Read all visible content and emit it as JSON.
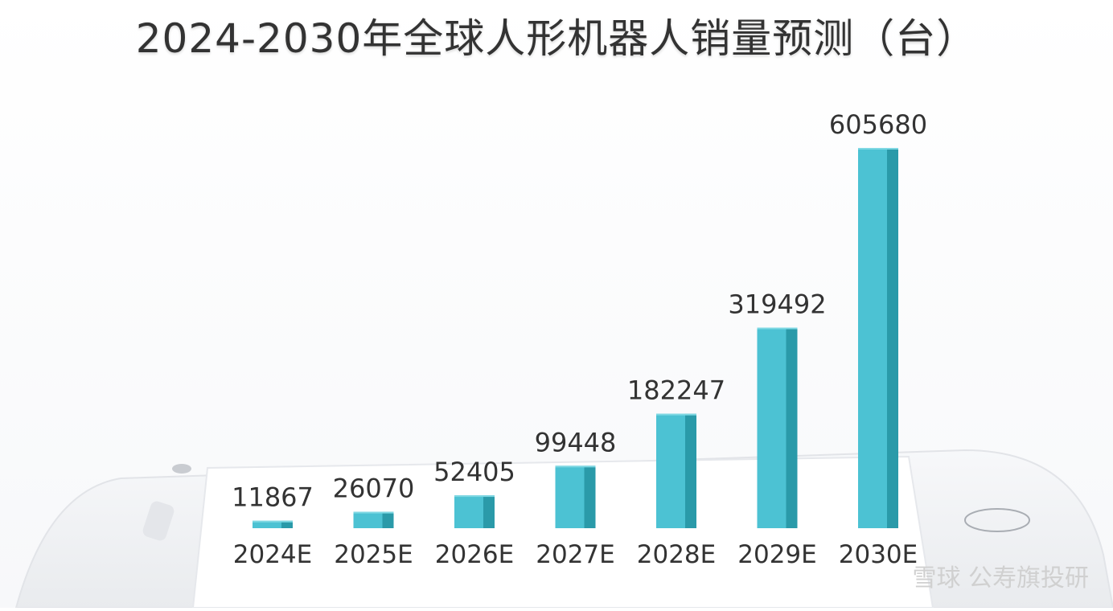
{
  "chart_data": {
    "type": "bar",
    "title": "2024-2030年全球人形机器人销量预测（台）",
    "categories": [
      "2024E",
      "2025E",
      "2026E",
      "2027E",
      "2028E",
      "2029E",
      "2030E"
    ],
    "values": [
      11867,
      26070,
      52405,
      99448,
      182247,
      319492,
      605680
    ],
    "ylim": [
      0,
      605680
    ],
    "grid": false,
    "legend": "none",
    "colors": {
      "bar_front": "#4cc2d3",
      "bar_side": "#2a9aa9",
      "bar_top": "#7fd8e3",
      "label": "#333333",
      "phone_body": "#f2f3f5",
      "phone_screen": "#ffffff"
    }
  },
  "watermark": "雪球 公寿旗投研"
}
